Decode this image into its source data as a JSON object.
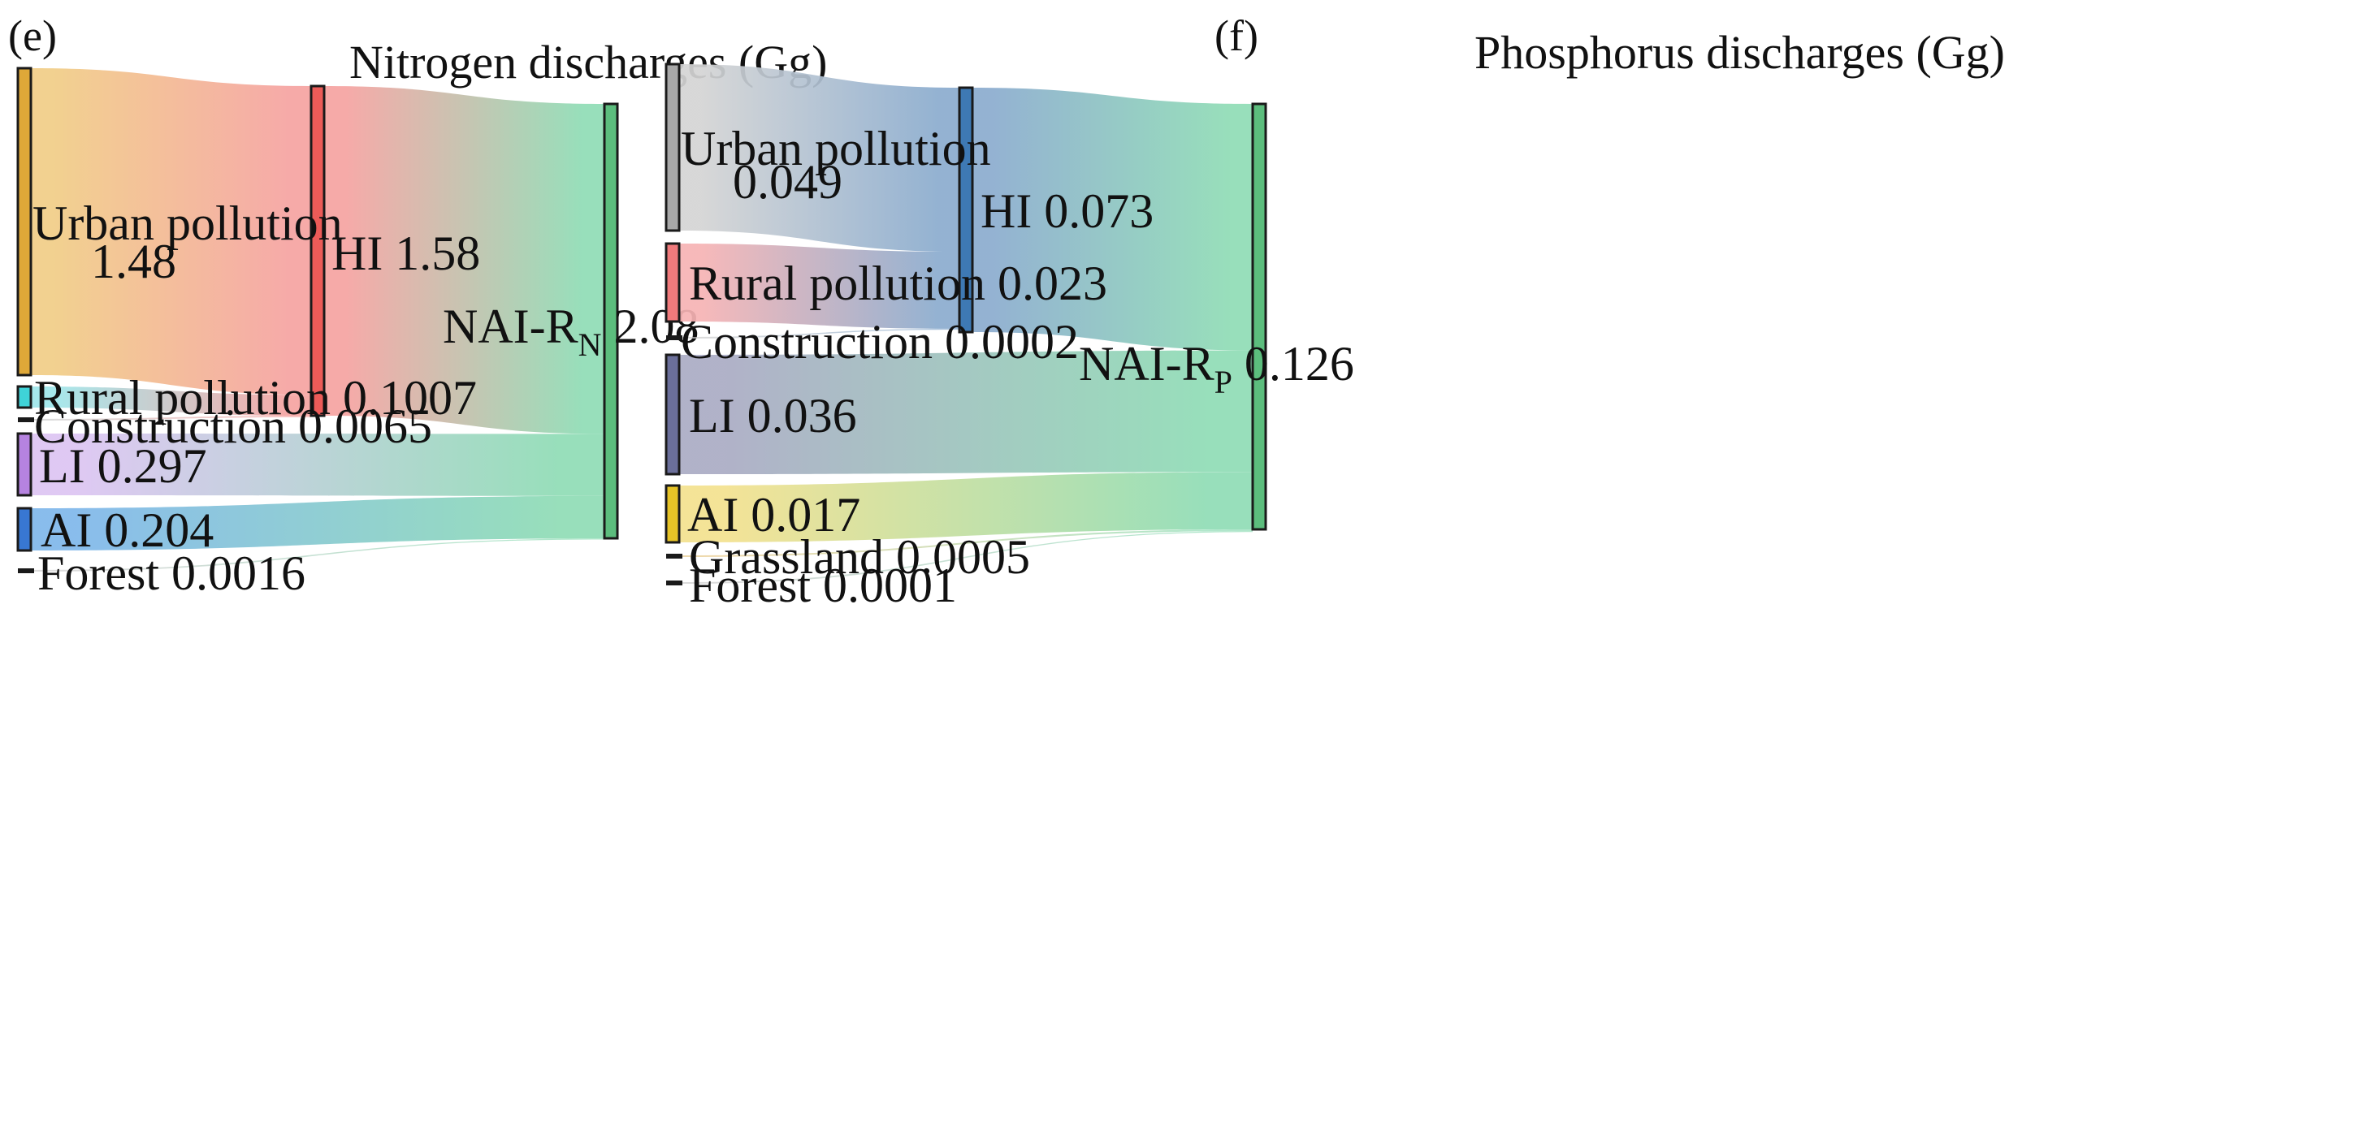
{
  "chart_data": [
    {
      "type": "sankey",
      "panel": "(e)",
      "title": "Nitrogen discharges  (Gg)",
      "nodes": [
        {
          "id": "urban",
          "column": 0,
          "value": 1.48,
          "color": "#dfa838",
          "label": [
            "Urban pollution",
            "1.48"
          ]
        },
        {
          "id": "rural",
          "column": 0,
          "value": 0.1007,
          "color": "#3fd3d8",
          "label": [
            "Rural pollution 0.1007"
          ]
        },
        {
          "id": "construction",
          "column": 0,
          "value": 0.0065,
          "color": "#222222",
          "label": [
            "Construction 0.0065"
          ]
        },
        {
          "id": "li",
          "column": 0,
          "value": 0.297,
          "color": "#b683e0",
          "label": [
            "LI 0.297"
          ]
        },
        {
          "id": "ai",
          "column": 0,
          "value": 0.204,
          "color": "#3877d2",
          "label": [
            "AI 0.204"
          ]
        },
        {
          "id": "forest",
          "column": 0,
          "value": 0.0016,
          "color": "#222222",
          "label": [
            "Forest 0.0016"
          ]
        },
        {
          "id": "hi",
          "column": 1,
          "value": 1.58,
          "color": "#ec5b58",
          "label": [
            "HI 1.58"
          ]
        },
        {
          "id": "nai",
          "column": 2,
          "value": 2.08,
          "color": "#5cbd7d",
          "label_main": "NAI-R",
          "label_sub": "N",
          "label_value": "2.08"
        }
      ],
      "links": [
        {
          "source": "urban",
          "target": "hi",
          "value": 1.48,
          "colors": [
            "#f1cd86",
            "#f5a3a1"
          ]
        },
        {
          "source": "rural",
          "target": "hi",
          "value": 0.1007,
          "colors": [
            "#9fe6ea",
            "#f5a3a1"
          ]
        },
        {
          "source": "construction",
          "target": "hi",
          "value": 0.0065,
          "colors": [
            "#cccccc",
            "#f5a3a1"
          ]
        },
        {
          "source": "hi",
          "target": "nai",
          "value": 1.58,
          "colors": [
            "#f5a3a1",
            "#8fdcb5"
          ]
        },
        {
          "source": "li",
          "target": "nai",
          "value": 0.297,
          "colors": [
            "#dcc4f2",
            "#8fdcb5"
          ]
        },
        {
          "source": "ai",
          "target": "nai",
          "value": 0.204,
          "colors": [
            "#7fb7ea",
            "#8fdcb5"
          ]
        },
        {
          "source": "forest",
          "target": "nai",
          "value": 0.0016,
          "colors": [
            "#cccccc",
            "#8fdcb5"
          ]
        }
      ]
    },
    {
      "type": "sankey",
      "panel": "(f)",
      "title": "Phosphorus discharges  (Gg)",
      "nodes": [
        {
          "id": "urban",
          "column": 0,
          "value": 0.049,
          "color": "#a8a8a8",
          "label": [
            "Urban pollution",
            "0.049"
          ]
        },
        {
          "id": "rural",
          "column": 0,
          "value": 0.023,
          "color": "#f07a7c",
          "label": [
            "Rural pollution 0.023"
          ]
        },
        {
          "id": "construction",
          "column": 0,
          "value": 0.0002,
          "color": "#222222",
          "label": [
            "Construction 0.0002"
          ]
        },
        {
          "id": "li",
          "column": 0,
          "value": 0.036,
          "color": "#6b6f9a",
          "label": [
            "LI 0.036"
          ]
        },
        {
          "id": "ai",
          "column": 0,
          "value": 0.017,
          "color": "#e6c327",
          "label": [
            "AI 0.017"
          ]
        },
        {
          "id": "grassland",
          "column": 0,
          "value": 0.0005,
          "color": "#222222",
          "label": [
            "Grassland 0.0005"
          ]
        },
        {
          "id": "forest",
          "column": 0,
          "value": 0.0001,
          "color": "#222222",
          "label": [
            "Forest  0.0001"
          ]
        },
        {
          "id": "hi",
          "column": 1,
          "value": 0.073,
          "color": "#3e79b4",
          "label": [
            "HI 0.073"
          ]
        },
        {
          "id": "nai",
          "column": 2,
          "value": 0.126,
          "color": "#5cbd7d",
          "label_main": "NAI-R",
          "label_sub": "P",
          "label_value": "0.126"
        }
      ],
      "links": [
        {
          "source": "urban",
          "target": "hi",
          "value": 0.049,
          "colors": [
            "#d4d4d4",
            "#8bacce"
          ]
        },
        {
          "source": "rural",
          "target": "hi",
          "value": 0.023,
          "colors": [
            "#f6b3b4",
            "#8bacce"
          ]
        },
        {
          "source": "construction",
          "target": "hi",
          "value": 0.0002,
          "colors": [
            "#cccccc",
            "#8bacce"
          ]
        },
        {
          "source": "hi",
          "target": "nai",
          "value": 0.073,
          "colors": [
            "#8bacce",
            "#8fdcb5"
          ]
        },
        {
          "source": "li",
          "target": "nai",
          "value": 0.036,
          "colors": [
            "#aaabc4",
            "#8fdcb5"
          ]
        },
        {
          "source": "ai",
          "target": "nai",
          "value": 0.017,
          "colors": [
            "#f3e18e",
            "#8fdcb5"
          ]
        },
        {
          "source": "grassland",
          "target": "nai",
          "value": 0.0005,
          "colors": [
            "#e6c98a",
            "#8fdcb5"
          ]
        },
        {
          "source": "forest",
          "target": "nai",
          "value": 0.0001,
          "colors": [
            "#cccccc",
            "#8fdcb5"
          ]
        }
      ]
    }
  ]
}
